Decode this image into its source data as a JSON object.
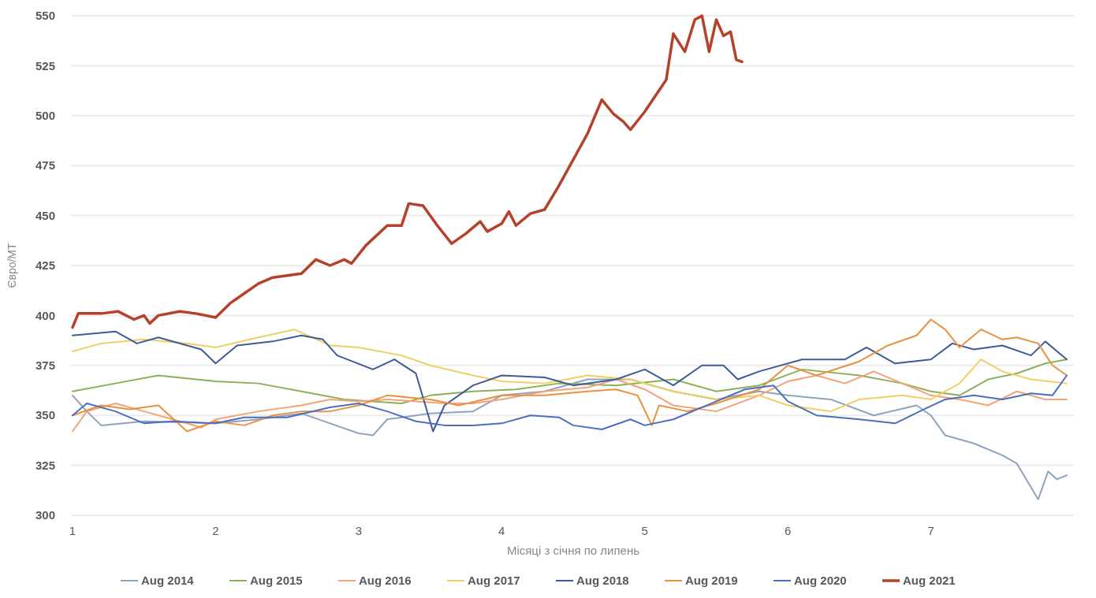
{
  "chart_data": {
    "type": "line",
    "xlabel": "Місяці з січня по липень",
    "ylabel": "Євро/МТ",
    "xlim": [
      1,
      8
    ],
    "xticks": [
      1,
      2,
      3,
      4,
      5,
      6,
      7
    ],
    "ylim": [
      300,
      550
    ],
    "yticks": [
      300,
      325,
      350,
      375,
      400,
      425,
      450,
      475,
      500,
      525,
      550
    ],
    "grid": "y",
    "legend": "bottom",
    "marker": "none",
    "line_style": "solid",
    "series": [
      {
        "name": "Aug 2014",
        "color": "#8ea3bf",
        "x": [
          1,
          1.1,
          1.2,
          1.5,
          2,
          2.3,
          2.6,
          2.8,
          3,
          3.1,
          3.2,
          3.5,
          3.8,
          4,
          4.3,
          4.6,
          4.9,
          5.2,
          5.5,
          5.8,
          6,
          6.3,
          6.6,
          6.9,
          7,
          7.1,
          7.3,
          7.5,
          7.6,
          7.75,
          7.82,
          7.88,
          7.95
        ],
        "values": [
          360,
          352,
          345,
          347,
          346,
          348,
          351,
          346,
          341,
          340,
          348,
          351,
          352,
          360,
          362,
          368,
          368,
          362,
          358,
          362,
          360,
          358,
          350,
          355,
          350,
          340,
          336,
          330,
          326,
          308,
          322,
          318,
          320
        ]
      },
      {
        "name": "Aug 2015",
        "color": "#8bb05a",
        "x": [
          1,
          1.3,
          1.6,
          2,
          2.3,
          2.6,
          2.9,
          3.1,
          3.3,
          3.5,
          3.8,
          4.1,
          4.4,
          4.8,
          5.2,
          5.5,
          5.8,
          6.1,
          6.5,
          6.8,
          7,
          7.2,
          7.4,
          7.6,
          7.8,
          7.95
        ],
        "values": [
          362,
          366,
          370,
          367,
          366,
          362,
          358,
          357,
          356,
          360,
          362,
          363,
          366,
          365,
          368,
          362,
          365,
          373,
          370,
          366,
          362,
          360,
          368,
          371,
          376,
          378
        ]
      },
      {
        "name": "Aug 2016",
        "color": "#f3a27a",
        "x": [
          1,
          1.1,
          1.3,
          1.5,
          1.7,
          1.9,
          2,
          2.3,
          2.6,
          2.8,
          3,
          3.2,
          3.4,
          3.6,
          3.8,
          4,
          4.3,
          4.6,
          4.8,
          5,
          5.2,
          5.5,
          5.8,
          6,
          6.2,
          6.4,
          6.6,
          6.8,
          7,
          7.2,
          7.4,
          7.6,
          7.8,
          7.95
        ],
        "values": [
          342,
          352,
          356,
          352,
          348,
          344,
          348,
          352,
          355,
          358,
          357,
          358,
          357,
          356,
          356,
          358,
          362,
          364,
          368,
          363,
          355,
          352,
          360,
          367,
          370,
          366,
          372,
          366,
          360,
          358,
          355,
          362,
          358,
          358
        ]
      },
      {
        "name": "Aug 2017",
        "color": "#f0cf62",
        "x": [
          1,
          1.2,
          1.5,
          1.8,
          2,
          2.3,
          2.55,
          2.8,
          3,
          3.3,
          3.5,
          3.8,
          4,
          4.3,
          4.6,
          4.9,
          5.2,
          5.5,
          5.8,
          6,
          6.3,
          6.5,
          6.8,
          7,
          7.2,
          7.35,
          7.5,
          7.7,
          7.95
        ],
        "values": [
          382,
          386,
          388,
          386,
          384,
          389,
          393,
          385,
          384,
          380,
          375,
          370,
          367,
          366,
          370,
          368,
          362,
          358,
          360,
          355,
          352,
          358,
          360,
          358,
          366,
          378,
          372,
          368,
          366
        ]
      },
      {
        "name": "Aug 2018",
        "color": "#3d5a99",
        "x": [
          1,
          1.3,
          1.45,
          1.6,
          1.9,
          2,
          2.15,
          2.4,
          2.6,
          2.75,
          2.85,
          3.1,
          3.25,
          3.4,
          3.52,
          3.6,
          3.8,
          4,
          4.3,
          4.5,
          4.8,
          5,
          5.2,
          5.4,
          5.55,
          5.65,
          5.8,
          6.1,
          6.4,
          6.55,
          6.75,
          7,
          7.15,
          7.3,
          7.5,
          7.7,
          7.8,
          7.95
        ],
        "values": [
          390,
          392,
          386,
          389,
          383,
          376,
          385,
          387,
          390,
          388,
          380,
          373,
          378,
          371,
          342,
          355,
          365,
          370,
          369,
          365,
          368,
          373,
          365,
          375,
          375,
          368,
          372,
          378,
          378,
          384,
          376,
          378,
          386,
          383,
          385,
          380,
          387,
          378
        ]
      },
      {
        "name": "Aug 2019",
        "color": "#e8913f",
        "x": [
          1,
          1.2,
          1.4,
          1.6,
          1.8,
          2,
          2.2,
          2.4,
          2.6,
          2.8,
          3,
          3.2,
          3.5,
          3.7,
          4,
          4.3,
          4.6,
          4.8,
          4.95,
          5.05,
          5.1,
          5.3,
          5.5,
          5.8,
          6,
          6.2,
          6.5,
          6.7,
          6.9,
          7,
          7.1,
          7.2,
          7.35,
          7.5,
          7.6,
          7.75,
          7.85,
          7.95
        ],
        "values": [
          350,
          355,
          353,
          355,
          342,
          347,
          345,
          350,
          352,
          352,
          355,
          360,
          358,
          355,
          360,
          360,
          362,
          363,
          360,
          345,
          355,
          352,
          356,
          363,
          375,
          370,
          377,
          385,
          390,
          398,
          393,
          384,
          393,
          388,
          389,
          386,
          375,
          370
        ]
      },
      {
        "name": "Aug 2020",
        "color": "#4a6fbf",
        "x": [
          1,
          1.1,
          1.3,
          1.5,
          1.7,
          2,
          2.2,
          2.5,
          2.8,
          3,
          3.2,
          3.4,
          3.6,
          3.8,
          4,
          4.2,
          4.4,
          4.5,
          4.7,
          4.9,
          5,
          5.2,
          5.5,
          5.7,
          5.9,
          6,
          6.2,
          6.5,
          6.75,
          6.95,
          7.1,
          7.3,
          7.5,
          7.7,
          7.85,
          7.95
        ],
        "values": [
          350,
          356,
          352,
          346,
          347,
          346,
          349,
          349,
          354,
          356,
          352,
          347,
          345,
          345,
          346,
          350,
          349,
          345,
          343,
          348,
          345,
          348,
          357,
          363,
          365,
          357,
          350,
          348,
          346,
          353,
          358,
          360,
          358,
          361,
          360,
          370
        ]
      },
      {
        "name": "Aug 2021",
        "color": "#b5412a",
        "x": [
          1,
          1.04,
          1.2,
          1.32,
          1.43,
          1.5,
          1.54,
          1.6,
          1.75,
          1.86,
          2,
          2.1,
          2.2,
          2.3,
          2.4,
          2.5,
          2.6,
          2.7,
          2.8,
          2.9,
          2.95,
          3.05,
          3.2,
          3.3,
          3.35,
          3.45,
          3.55,
          3.65,
          3.75,
          3.85,
          3.9,
          4,
          4.05,
          4.1,
          4.2,
          4.3,
          4.4,
          4.5,
          4.6,
          4.7,
          4.78,
          4.85,
          4.9,
          5,
          5.15,
          5.2,
          5.28,
          5.35,
          5.4,
          5.45,
          5.5,
          5.55,
          5.6,
          5.64,
          5.68
        ],
        "values": [
          394,
          401,
          401,
          402,
          398,
          400,
          396,
          400,
          402,
          401,
          399,
          406,
          411,
          416,
          419,
          420,
          421,
          428,
          425,
          428,
          426,
          435,
          445,
          445,
          456,
          455,
          445,
          436,
          441,
          447,
          442,
          446,
          452,
          445,
          451,
          453,
          465,
          478,
          491,
          508,
          501,
          497,
          493,
          502,
          518,
          541,
          532,
          548,
          550,
          532,
          548,
          540,
          542,
          528,
          527
        ]
      }
    ]
  }
}
